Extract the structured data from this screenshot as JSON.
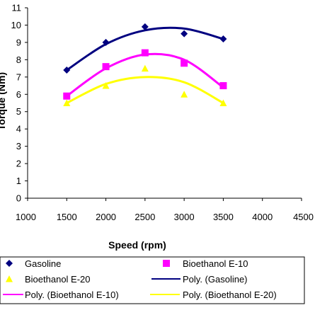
{
  "chart_data": {
    "type": "scatter",
    "xlabel": "Speed (rpm)",
    "ylabel": "Torque (Nm)",
    "xlim": [
      1000,
      4500
    ],
    "ylim": [
      0,
      11
    ],
    "x_ticks": [
      1000,
      1500,
      2000,
      2500,
      3000,
      3500,
      4000,
      4500
    ],
    "y_ticks": [
      0,
      1,
      2,
      3,
      4,
      5,
      6,
      7,
      8,
      9,
      10,
      11
    ],
    "grid": false,
    "legend_position": "bottom",
    "series": [
      {
        "name": "Gasoline",
        "marker": "diamond",
        "color": "#000080",
        "x": [
          1500,
          2000,
          2500,
          3000,
          3500
        ],
        "y": [
          7.4,
          9.0,
          9.9,
          9.5,
          9.2
        ]
      },
      {
        "name": "Bioethanol E-10",
        "marker": "square",
        "color": "#ff00ff",
        "x": [
          1500,
          2000,
          2500,
          3000,
          3500
        ],
        "y": [
          5.9,
          7.6,
          8.4,
          7.8,
          6.5
        ]
      },
      {
        "name": "Bioethanol E-20",
        "marker": "triangle",
        "color": "#ffff00",
        "x": [
          1500,
          2000,
          2500,
          3000,
          3500
        ],
        "y": [
          5.5,
          6.5,
          7.5,
          6.0,
          5.5
        ]
      }
    ],
    "trendlines": [
      {
        "name": "Poly. (Gasoline)",
        "color": "#000080",
        "x": [
          1500,
          2000,
          2500,
          3000,
          3500
        ],
        "y": [
          7.4,
          8.9,
          9.7,
          9.8,
          9.2
        ]
      },
      {
        "name": "Poly. (Bioethanol E-10)",
        "color": "#ff00ff",
        "x": [
          1500,
          2000,
          2500,
          3000,
          3500
        ],
        "y": [
          5.9,
          7.5,
          8.3,
          8.0,
          6.4
        ]
      },
      {
        "name": "Poly. (Bioethanol E-20)",
        "color": "#ffff00",
        "x": [
          1500,
          2000,
          2500,
          3000,
          3500
        ],
        "y": [
          5.5,
          6.6,
          7.0,
          6.7,
          5.5
        ]
      }
    ]
  }
}
